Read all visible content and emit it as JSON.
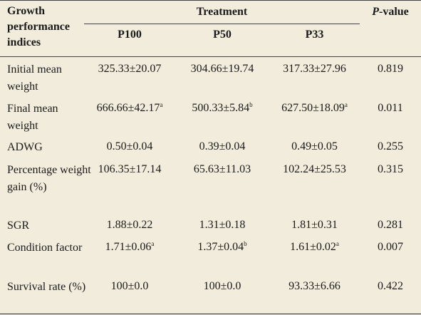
{
  "header": {
    "row_label_title": "Growth performance indices",
    "treatment_label": "Treatment",
    "pvalue_label_italic": "P",
    "pvalue_label_rest": "-value",
    "treatments": [
      "P100",
      "P50",
      "P33"
    ]
  },
  "rows": [
    {
      "label": "Initial mean weight",
      "p100": "325.33±20.07",
      "p100_sup": "",
      "p50": "304.66±19.74",
      "p50_sup": "",
      "p33": "317.33±27.96",
      "p33_sup": "",
      "p": "0.819"
    },
    {
      "label": "Final mean weight",
      "p100": "666.66±42.17",
      "p100_sup": "a",
      "p50": "500.33±5.84",
      "p50_sup": "b",
      "p33": "627.50±18.09",
      "p33_sup": "a",
      "p": "0.011"
    },
    {
      "label": "ADWG",
      "p100": "0.50±0.04",
      "p100_sup": "",
      "p50": "0.39±0.04",
      "p50_sup": "",
      "p33": "0.49±0.05",
      "p33_sup": "",
      "p": "0.255"
    },
    {
      "label": "Percentage weight gain (%)",
      "p100": "106.35±17.14",
      "p100_sup": "",
      "p50": "65.63±11.03",
      "p50_sup": "",
      "p33": "102.24±25.53",
      "p33_sup": "",
      "p": "0.315"
    },
    {
      "label": "SGR",
      "p100": "1.88±0.22",
      "p100_sup": "",
      "p50": "1.31±0.18",
      "p50_sup": "",
      "p33": "1.81±0.31",
      "p33_sup": "",
      "p": "0.281"
    },
    {
      "label": "Condition factor",
      "p100": "1.71±0.06",
      "p100_sup": "a",
      "p50": "1.37±0.04",
      "p50_sup": "b",
      "p33": "1.61±0.02",
      "p33_sup": "a",
      "p": "0.007"
    },
    {
      "label": "Survival rate (%)",
      "p100": "100±0.0",
      "p100_sup": "",
      "p50": "100±0.0",
      "p50_sup": "",
      "p33": "93.33±6.66",
      "p33_sup": "",
      "p": "0.422"
    }
  ]
}
